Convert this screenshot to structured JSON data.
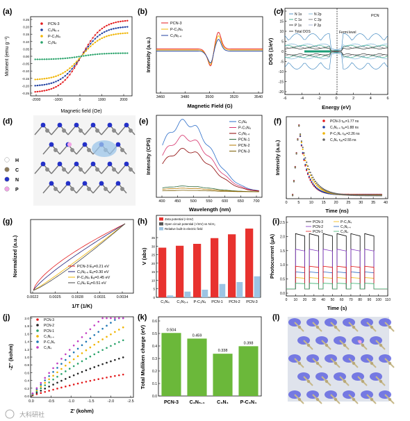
{
  "panels": [
    {
      "id": "a",
      "label": "(a)",
      "ylabel": "Moment (emu g⁻¹)",
      "xlabel": "Magnetic field (Oe)",
      "xticks": [
        "-2000",
        "-1000",
        "0",
        "1000",
        "2000"
      ],
      "yticks": [
        "0.25",
        "0.20",
        "0.15",
        "0.10",
        "0.05",
        "0.00",
        "-0.05",
        "-0.10",
        "-0.15",
        "-0.20",
        "-0.25"
      ],
      "legend": [
        "PCN-3",
        "C₃N₅.₄",
        "P-C₃N₄",
        "C₃N₄"
      ]
    },
    {
      "id": "b",
      "label": "(b)",
      "ylabel": "Intensity (a.u.)",
      "xlabel": "Magnetic Field (G)",
      "xticks": [
        "3460",
        "3480",
        "3500",
        "3520",
        "3540"
      ],
      "legend": [
        "PCN-3",
        "P-C₃N₄",
        "C₃N₅.₄"
      ]
    },
    {
      "id": "c",
      "label": "(c)",
      "ylabel": "DOS (1/eV)",
      "xlabel": "Energy (eV)",
      "xticks": [
        "-6",
        "-4",
        "-2",
        "0",
        "2",
        "4",
        "6"
      ],
      "yticks": [
        "20",
        "15",
        "10",
        "5",
        "0",
        "-5",
        "-10",
        "-15",
        "-20"
      ],
      "legend": [
        "N 1s",
        "N 2p",
        "C 1s",
        "C 2p",
        "P 1s",
        "P 2p",
        "Total DOS"
      ],
      "tag": "PCN",
      "fermi": "Fermi level"
    },
    {
      "id": "d",
      "label": "(d)",
      "legend": [
        "H",
        "C",
        "N",
        "P"
      ]
    },
    {
      "id": "e",
      "label": "(e)",
      "ylabel": "Intensity (CPS)",
      "xlabel": "Wavelength (nm)",
      "xticks": [
        "400",
        "450",
        "500",
        "550",
        "600",
        "650",
        "700"
      ],
      "legend": [
        "C₃N₄",
        "P-C₃N₄",
        "C₃N₅.₄",
        "PCN-1",
        "PCN-2",
        "PCN-3"
      ]
    },
    {
      "id": "f",
      "label": "(f)",
      "ylabel": "Intensity (a.u.)",
      "xlabel": "Time (ns)",
      "xticks": [
        "0",
        "5",
        "10",
        "15",
        "20",
        "25",
        "30",
        "35",
        "40"
      ],
      "legend": [
        "PCN-3   τₐᵥ=1.77 ns",
        "C₃N₅.₄   τₐᵥ=1.88 ns",
        "P-C₃N₄   τₐᵥ=2.26 ns",
        "C₃N₄   τₐᵥ=2.55 ns"
      ]
    },
    {
      "id": "g",
      "label": "(g)",
      "ylabel": "Normalized (a.u.)",
      "xlabel": "1/T (1/K)",
      "xticks": [
        "0.0022",
        "0.0025",
        "0.0028",
        "0.0031",
        "0.0034"
      ],
      "legend": [
        "PCN-3    Eₐ=0.21 eV",
        "C₃N₅.₄    Eₐ=0.30 eV",
        "P-C₃N₄    Eₐ=0.45 eV",
        "C₃N₄    Eₐ=0.51 eV"
      ]
    },
    {
      "id": "h",
      "label": "(h)",
      "ylabel": "V (abs)",
      "yticks": [
        "0",
        "5",
        "10",
        "15",
        "20",
        "25",
        "30",
        "35"
      ],
      "legend": [
        "Zeta potential (+/mV)",
        "Open circuit potential (+/mV) vs Ni:H₂",
        "Relative built-in electric field"
      ]
    },
    {
      "id": "i",
      "label": "(i)",
      "ylabel": "Photocurrent (μA)",
      "xlabel": "Time (s)",
      "xticks": [
        "0",
        "10",
        "20",
        "30",
        "40",
        "50",
        "60",
        "70",
        "80",
        "90",
        "100",
        "110"
      ],
      "yticks": [
        "0.0",
        "0.5",
        "1.0",
        "1.5",
        "2.0",
        "2.5"
      ],
      "legend": [
        "PCN-3",
        "P-C₃N₄",
        "PCN-2",
        "C₃N₅.₄",
        "PCN-1",
        "C₃N₄"
      ]
    },
    {
      "id": "j",
      "label": "(j)",
      "ylabel": "-Z'' (kohm)",
      "xlabel": "Z' (kohm)",
      "xticks": [
        "0.0",
        "-0.5",
        "-1.0",
        "-1.5",
        "-2.0",
        "-2.5"
      ],
      "yticks": [
        "0.0",
        "0.2",
        "0.4",
        "0.6",
        "0.8",
        "1.0",
        "1.2",
        "1.4",
        "1.6",
        "1.8",
        "2.0"
      ],
      "legend": [
        "PCN-3",
        "PCN-2",
        "PCN-1",
        "C₃N₅.₄",
        "P-C₃N₄",
        "C₃N₄"
      ]
    },
    {
      "id": "k",
      "label": "(k)",
      "ylabel": "Total Mulliken charge (eV)",
      "yticks": [
        "0.0",
        "0.1",
        "0.2",
        "0.3",
        "0.4",
        "0.5",
        "0.6"
      ]
    },
    {
      "id": "l",
      "label": "(l)"
    }
  ],
  "watermark": "大科研社",
  "colors": {
    "pcn3": "#e31a1c",
    "c3n54": "#1f3fa0",
    "pc3n4": "#f0b400",
    "c3n4": "#2aa36b",
    "gray": "#444444"
  },
  "chart_data": [
    {
      "type": "bar",
      "panel": "k",
      "categories": [
        "PCN-3",
        "C₃N₅.₄",
        "C₃N₄",
        "P-C₃N₄"
      ],
      "values": [
        0.504,
        0.459,
        0.338,
        0.398
      ],
      "value_labels": [
        "0.504",
        "0.459",
        "0.338",
        "0.398"
      ],
      "ylim": [
        0,
        0.6
      ],
      "ylabel": "Total Mulliken charge (eV)"
    },
    {
      "type": "bar",
      "panel": "h",
      "categories": [
        "C₃N₄",
        "C₃N₅.₄",
        "P-C₃N₄",
        "PCN-1",
        "PCN-2",
        "PCN-3"
      ],
      "series": [
        {
          "name": "Zeta potential (+/mV)",
          "values": [
            26,
            27,
            28,
            31,
            33,
            36
          ]
        },
        {
          "name": "Open circuit potential (+/mV) vs Ni:H₂",
          "values": [
            0,
            0,
            0,
            0,
            0,
            0
          ]
        },
        {
          "name": "Relative built-in electric field",
          "values": [
            1,
            3,
            4,
            7,
            8,
            11
          ]
        }
      ],
      "ylabel": "V (abs)"
    },
    {
      "type": "line",
      "panel": "a",
      "xlabel": "Magnetic field (Oe)",
      "ylabel": "Moment (emu g⁻¹)",
      "xlim": [
        -2200,
        2200
      ],
      "ylim": [
        -0.25,
        0.25
      ],
      "series": [
        {
          "name": "PCN-3",
          "ms": 0.23
        },
        {
          "name": "C₃N₅.₄",
          "ms": 0.19
        },
        {
          "name": "P-C₃N₄",
          "ms": 0.15
        },
        {
          "name": "C₃N₄",
          "ms": 0.02
        }
      ]
    },
    {
      "type": "line",
      "panel": "b",
      "xlabel": "Magnetic Field (G)",
      "ylabel": "Intensity (a.u.)",
      "xlim": [
        3460,
        3540
      ],
      "series": [
        {
          "name": "PCN-3",
          "amp": 1.0
        },
        {
          "name": "P-C₃N₄",
          "amp": 0.85
        },
        {
          "name": "C₃N₅.₄",
          "amp": 0.7
        }
      ]
    },
    {
      "type": "line",
      "panel": "e",
      "xlabel": "Wavelength (nm)",
      "ylabel": "Intensity (CPS)",
      "xlim": [
        380,
        730
      ],
      "series": [
        {
          "name": "C₃N₄",
          "peak": 1.0
        },
        {
          "name": "P-C₃N₄",
          "peak": 0.78
        },
        {
          "name": "C₃N₅.₄",
          "peak": 0.6
        },
        {
          "name": "PCN-1",
          "peak": 0.08
        },
        {
          "name": "PCN-2",
          "peak": 0.05
        },
        {
          "name": "PCN-3",
          "peak": 0.02
        }
      ]
    },
    {
      "type": "scatter",
      "panel": "f",
      "xlabel": "Time (ns)",
      "ylabel": "Intensity (a.u.)",
      "xlim": [
        0,
        40
      ],
      "series": [
        {
          "name": "PCN-3",
          "tau": 1.77
        },
        {
          "name": "C₃N₅.₄",
          "tau": 1.88
        },
        {
          "name": "P-C₃N₄",
          "tau": 2.26
        },
        {
          "name": "C₃N₄",
          "tau": 2.55
        }
      ]
    },
    {
      "type": "line",
      "panel": "g",
      "xlabel": "1/T (1/K)",
      "ylabel": "Normalized (a.u.)",
      "xlim": [
        0.0022,
        0.0035
      ],
      "series": [
        {
          "name": "PCN-3",
          "ea": 0.21
        },
        {
          "name": "C₃N₅.₄",
          "ea": 0.3
        },
        {
          "name": "P-C₃N₄",
          "ea": 0.45
        },
        {
          "name": "C₃N₄",
          "ea": 0.51
        }
      ]
    },
    {
      "type": "line",
      "panel": "i",
      "xlabel": "Time (s)",
      "ylabel": "Photocurrent (μA)",
      "xlim": [
        0,
        110
      ],
      "ylim": [
        0,
        2.5
      ],
      "series": [
        {
          "name": "PCN-3",
          "on": 2.1
        },
        {
          "name": "P-C₃N₄",
          "on": 0.55
        },
        {
          "name": "PCN-2",
          "on": 1.55
        },
        {
          "name": "C₃N₅.₄",
          "on": 0.75
        },
        {
          "name": "PCN-1",
          "on": 0.95
        },
        {
          "name": "C₃N₄",
          "on": 0.35
        }
      ]
    },
    {
      "type": "scatter",
      "panel": "j",
      "xlabel": "Z' (kohm)",
      "ylabel": "-Z'' (kohm)",
      "xlim": [
        0,
        -2.5
      ],
      "ylim": [
        0,
        2.0
      ],
      "series": [
        {
          "name": "PCN-3",
          "slope": 0.25
        },
        {
          "name": "PCN-2",
          "slope": 0.45
        },
        {
          "name": "PCN-1",
          "slope": 0.65
        },
        {
          "name": "C₃N₅.₄",
          "slope": 0.8
        },
        {
          "name": "P-C₃N₄",
          "slope": 0.95
        },
        {
          "name": "C₃N₄",
          "slope": 1.1
        }
      ]
    }
  ]
}
